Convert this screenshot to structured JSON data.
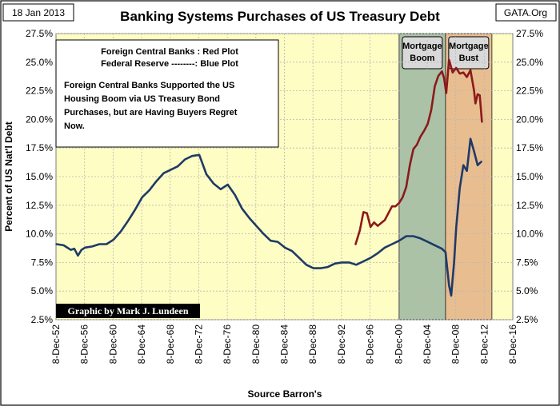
{
  "corner": {
    "date": "18 Jan 2013",
    "source_site": "GATA.Org"
  },
  "chart_data": {
    "type": "line",
    "title": "Banking Systems Purchases of US Treasury Debt",
    "xlabel": "Source Barron's",
    "ylabel": "Percent of US Nat'l Debt",
    "ylim": [
      2.5,
      27.5
    ],
    "xlim": [
      1952.93,
      2016.93
    ],
    "y_ticks": [
      "2.5%",
      "5.0%",
      "7.5%",
      "10.0%",
      "12.5%",
      "15.0%",
      "17.5%",
      "20.0%",
      "22.5%",
      "25.0%",
      "27.5%"
    ],
    "x_ticks": [
      "8-Dec-52",
      "8-Dec-56",
      "8-Dec-60",
      "8-Dec-64",
      "8-Dec-68",
      "8-Dec-72",
      "8-Dec-76",
      "8-Dec-80",
      "8-Dec-84",
      "8-Dec-88",
      "8-Dec-92",
      "8-Dec-96",
      "8-Dec-00",
      "8-Dec-04",
      "8-Dec-08",
      "8-Dec-12",
      "8-Dec-16"
    ],
    "grid": true,
    "legend_box": {
      "line1": "Foreign Central Banks : Red Plot",
      "line2": "Federal Reserve --------: Blue Plot",
      "note": [
        "Foreign Central Banks Supported the US",
        "Housing Boom via US Treasury Bond",
        "Purchases, but are Having Buyers Regret",
        "Now."
      ]
    },
    "credit": "Graphic by Mark J. Lundeen",
    "annotations": [
      {
        "label": [
          "Mortgage",
          "Boom"
        ],
        "x_start": 2001.0,
        "x_end": 2007.5,
        "color": "#8fae9e"
      },
      {
        "label": [
          "Mortgage",
          "Bust"
        ],
        "x_start": 2007.5,
        "x_end": 2014.0,
        "color": "#e0a77f"
      }
    ],
    "series": [
      {
        "name": "Federal Reserve",
        "color": "#1f3a68",
        "x": [
          1953.0,
          1954.0,
          1955.0,
          1955.5,
          1956.0,
          1956.5,
          1957.0,
          1958.0,
          1959.0,
          1960.0,
          1961.0,
          1962.0,
          1963.0,
          1964.0,
          1965.0,
          1966.0,
          1967.0,
          1968.0,
          1969.0,
          1970.0,
          1971.0,
          1972.0,
          1973.0,
          1974.0,
          1975.0,
          1976.0,
          1977.0,
          1978.0,
          1979.0,
          1980.0,
          1981.0,
          1982.0,
          1983.0,
          1984.0,
          1985.0,
          1986.0,
          1987.0,
          1988.0,
          1989.0,
          1990.0,
          1991.0,
          1992.0,
          1993.0,
          1994.0,
          1995.0,
          1996.0,
          1997.0,
          1998.0,
          1999.0,
          2000.0,
          2001.0,
          2002.0,
          2003.0,
          2004.0,
          2005.0,
          2006.0,
          2007.0,
          2007.5,
          2008.0,
          2008.3,
          2008.7,
          2009.0,
          2009.5,
          2010.0,
          2010.5,
          2011.0,
          2011.5,
          2012.0,
          2012.5
        ],
        "values": [
          9.1,
          9.0,
          8.6,
          8.7,
          8.1,
          8.6,
          8.8,
          8.9,
          9.1,
          9.1,
          9.5,
          10.2,
          11.1,
          12.1,
          13.2,
          13.8,
          14.6,
          15.3,
          15.6,
          15.9,
          16.5,
          16.8,
          16.9,
          15.2,
          14.4,
          13.9,
          14.3,
          13.4,
          12.2,
          11.4,
          10.7,
          10.0,
          9.4,
          9.3,
          8.8,
          8.5,
          7.9,
          7.3,
          7.0,
          7.0,
          7.1,
          7.4,
          7.5,
          7.5,
          7.3,
          7.6,
          7.9,
          8.3,
          8.8,
          9.1,
          9.4,
          9.8,
          9.8,
          9.6,
          9.3,
          9.0,
          8.7,
          8.4,
          5.5,
          4.6,
          7.5,
          10.5,
          14.0,
          16.0,
          15.5,
          18.3,
          17.2,
          16.0,
          16.3
        ]
      },
      {
        "name": "Foreign Central Banks",
        "color": "#8b1a1a",
        "x": [
          1994.9,
          1995.5,
          1996.0,
          1996.5,
          1997.0,
          1997.5,
          1998.0,
          1999.0,
          2000.0,
          2000.5,
          2001.0,
          2001.5,
          2002.0,
          2002.5,
          2003.0,
          2003.5,
          2004.0,
          2004.5,
          2005.0,
          2005.5,
          2006.0,
          2006.5,
          2007.0,
          2007.3,
          2007.6,
          2008.0,
          2008.5,
          2009.0,
          2009.5,
          2010.0,
          2010.5,
          2011.0,
          2011.5,
          2011.7,
          2012.0,
          2012.3,
          2012.6
        ],
        "values": [
          9.1,
          10.3,
          11.9,
          11.8,
          10.6,
          11.0,
          10.7,
          11.2,
          12.4,
          12.4,
          12.7,
          13.2,
          14.1,
          16.0,
          17.4,
          17.8,
          18.5,
          19.0,
          19.6,
          20.8,
          22.9,
          23.8,
          24.2,
          23.6,
          22.3,
          25.2,
          24.1,
          24.5,
          24.0,
          24.1,
          23.7,
          24.3,
          22.5,
          21.4,
          22.2,
          22.1,
          19.8
        ]
      }
    ]
  }
}
